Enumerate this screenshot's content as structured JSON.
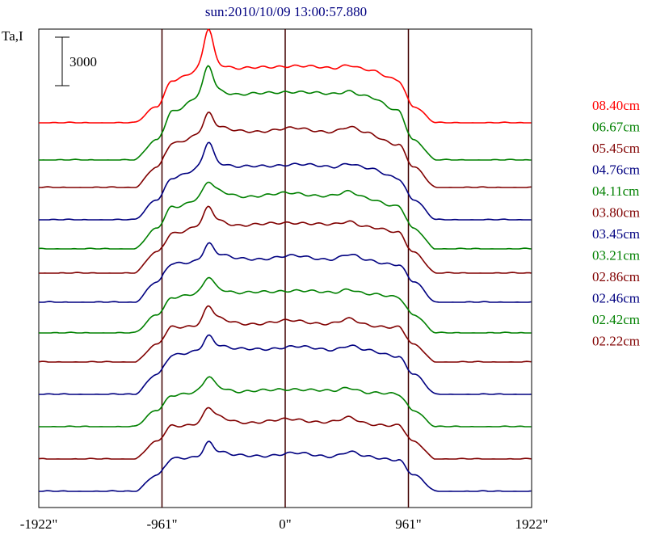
{
  "chart_data": {
    "type": "line",
    "title": "sun:2010/10/09 13:00:57.880",
    "ylabel": "Ta,I",
    "scale_bar_label": "3000",
    "x_ticks": [
      {
        "value": -1922,
        "label": "-1922\""
      },
      {
        "value": -961,
        "label": "-961\""
      },
      {
        "value": 0,
        "label": "0\""
      },
      {
        "value": 961,
        "label": "961\""
      },
      {
        "value": 1922,
        "label": "1922\""
      }
    ],
    "xlim": [
      -1922,
      1922
    ],
    "vertical_markers": [
      -961,
      0,
      961
    ],
    "ylim": [
      0,
      35000
    ],
    "grid": false,
    "legend_position": "right",
    "series": [
      {
        "name": "08.40cm",
        "color": "#ff0000",
        "offset": 22800,
        "peak": 5000,
        "plateau": 3400,
        "limb_height": 1700,
        "knee": 1500
      },
      {
        "name": "06.67cm",
        "color": "#008000",
        "offset": 20500,
        "peak": 5000,
        "plateau": 4100,
        "limb_height": 2100,
        "knee": 1500
      },
      {
        "name": "05.45cm",
        "color": "#800000",
        "offset": 18800,
        "peak": 3800,
        "plateau": 3500,
        "limb_height": 2100,
        "knee": 1300
      },
      {
        "name": "04.76cm",
        "color": "#000080",
        "offset": 16800,
        "peak": 4000,
        "plateau": 3300,
        "limb_height": 2100,
        "knee": 1300
      },
      {
        "name": "04.11cm",
        "color": "#008000",
        "offset": 15000,
        "peak": 3300,
        "plateau": 3300,
        "limb_height": 2100,
        "knee": 1300
      },
      {
        "name": "03.80cm",
        "color": "#800000",
        "offset": 13500,
        "peak": 3200,
        "plateau": 3000,
        "limb_height": 2200,
        "knee": 1300
      },
      {
        "name": "03.45cm",
        "color": "#000080",
        "offset": 11700,
        "peak": 2800,
        "plateau": 2700,
        "limb_height": 2100,
        "knee": 1300
      },
      {
        "name": "03.21cm",
        "color": "#008000",
        "offset": 9800,
        "peak": 2600,
        "plateau": 2500,
        "limb_height": 1900,
        "knee": 1300
      },
      {
        "name": "02.86cm",
        "color": "#800000",
        "offset": 8000,
        "peak": 2600,
        "plateau": 2400,
        "limb_height": 1800,
        "knee": 1300
      },
      {
        "name": "02.46cm",
        "color": "#000080",
        "offset": 6000,
        "peak": 2700,
        "plateau": 2800,
        "limb_height": 2100,
        "knee": 1300
      },
      {
        "name": "02.42cm",
        "color": "#008000",
        "offset": 4000,
        "peak": 2200,
        "plateau": 2200,
        "limb_height": 1700,
        "knee": 1200
      },
      {
        "name": "02.22cm",
        "color": "#800000",
        "offset": 2000,
        "peak": 2300,
        "plateau": 2300,
        "limb_height": 1800,
        "knee": 1200
      },
      {
        "name": "",
        "color": "#000080",
        "offset": 0,
        "peak": 2100,
        "plateau": 2200,
        "limb_height": 1700,
        "knee": 1200
      }
    ]
  }
}
